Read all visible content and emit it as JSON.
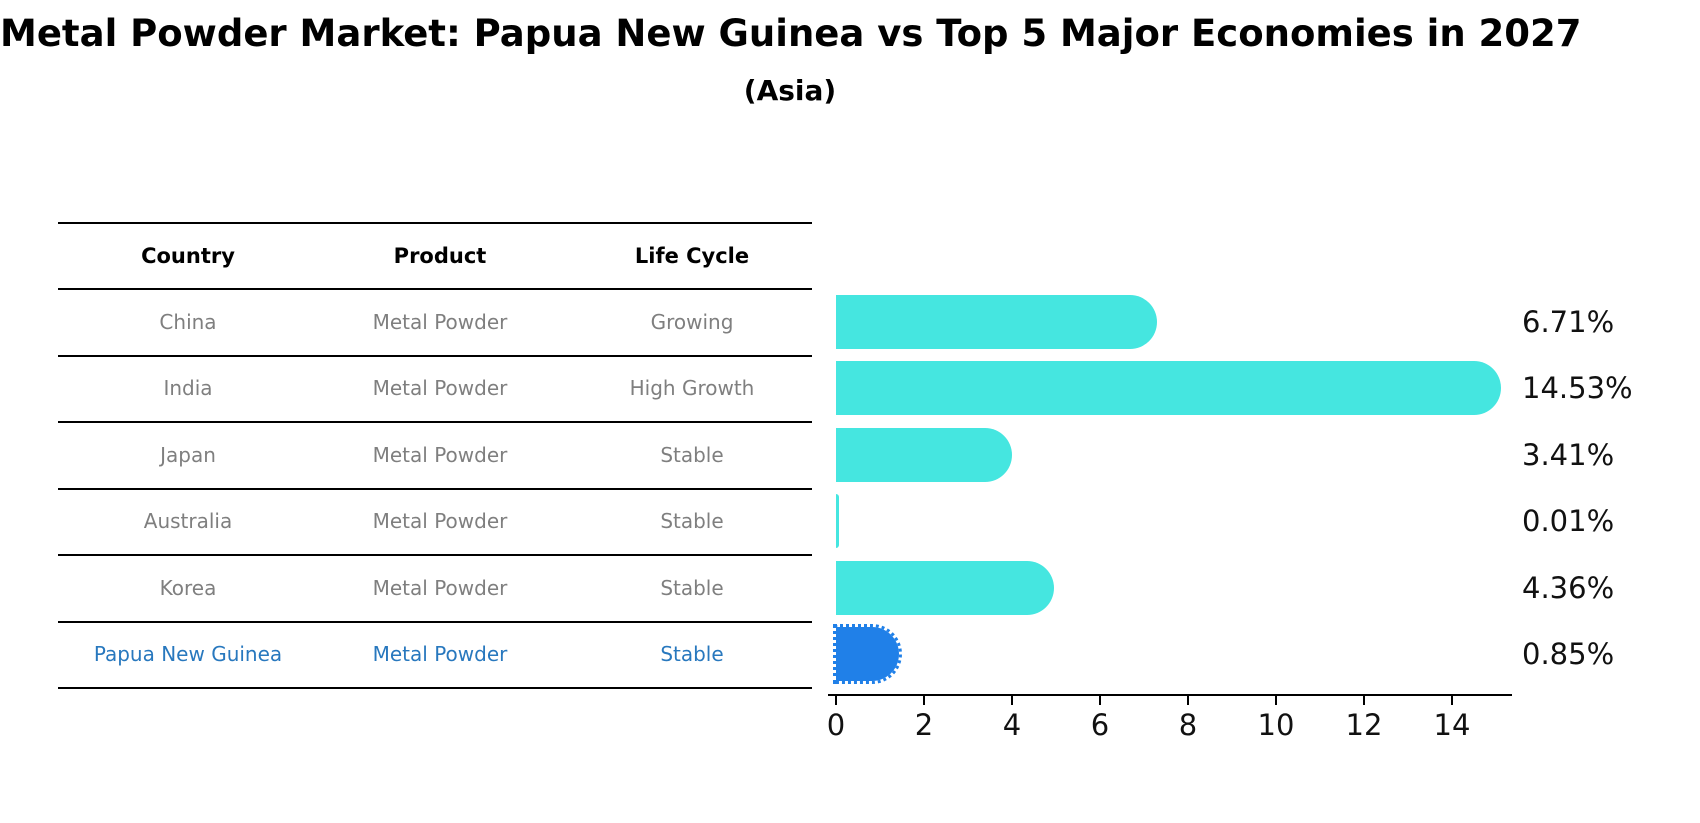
{
  "title": "Metal Powder Market: Papua New Guinea vs Top 5 Major Economies in 2027",
  "subtitle": "(Asia)",
  "table": {
    "headers": [
      "Country",
      "Product",
      "Life Cycle"
    ],
    "rows": [
      {
        "country": "China",
        "product": "Metal Powder",
        "life_cycle": "Growing",
        "highlight": false
      },
      {
        "country": "India",
        "product": "Metal Powder",
        "life_cycle": "High Growth",
        "highlight": false
      },
      {
        "country": "Japan",
        "product": "Metal Powder",
        "life_cycle": "Stable",
        "highlight": false
      },
      {
        "country": "Australia",
        "product": "Metal Powder",
        "life_cycle": "Stable",
        "highlight": false
      },
      {
        "country": "Korea",
        "product": "Metal Powder",
        "life_cycle": "Stable",
        "highlight": false
      },
      {
        "country": "Papua New Guinea",
        "product": "Metal Powder",
        "life_cycle": "Stable",
        "highlight": true
      }
    ]
  },
  "chart_data": {
    "type": "bar",
    "orientation": "horizontal",
    "title": "Metal Powder Market: Papua New Guinea vs Top 5 Major Economies in 2027",
    "subtitle": "(Asia)",
    "categories": [
      "China",
      "India",
      "Japan",
      "Australia",
      "Korea",
      "Papua New Guinea"
    ],
    "values": [
      6.71,
      14.53,
      3.41,
      0.01,
      4.36,
      0.85
    ],
    "labels": [
      "6.71%",
      "14.53%",
      "3.41%",
      "0.01%",
      "4.36%",
      "0.85%"
    ],
    "x_ticks": [
      0,
      2,
      4,
      6,
      8,
      10,
      12,
      14
    ],
    "xlim": [
      0,
      15.3
    ],
    "grid": false,
    "legend": "none",
    "bar_color": "#45e6e0",
    "highlight_color": "#2080e8",
    "highlight_index": 5
  },
  "colors": {
    "bar_cyan": "#45e6e0",
    "bar_blue": "#2080e8",
    "highlight_text_blue": "#2878be",
    "muted_text_gray": "#7f7f7f",
    "text_black": "#000000"
  }
}
